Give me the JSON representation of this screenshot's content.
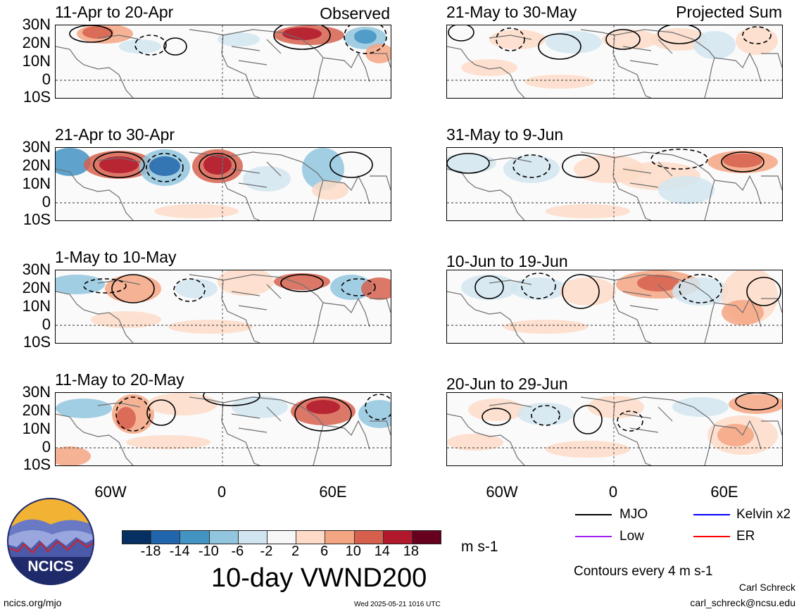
{
  "column_labels": {
    "left": "Observed",
    "right": "Projected Sum"
  },
  "panels": {
    "left": [
      "11-Apr to 20-Apr",
      "21-Apr to 30-Apr",
      "1-May to 10-May",
      "11-May to 20-May"
    ],
    "right": [
      "21-May to 30-May",
      "31-May to 9-Jun",
      "10-Jun to 19-Jun",
      "20-Jun to 29-Jun"
    ]
  },
  "lat_labels": [
    "30N",
    "20N",
    "10N",
    "0",
    "10S"
  ],
  "lon_labels": [
    "60W",
    "0",
    "60E"
  ],
  "colorbar": {
    "colors": [
      "#053061",
      "#2166ac",
      "#4393c3",
      "#92c5de",
      "#d1e5f0",
      "#f7f7f7",
      "#fddbc7",
      "#f4a582",
      "#d6604d",
      "#b2182b",
      "#67001f"
    ],
    "ticks": [
      "-18",
      "-14",
      "-10",
      "-6",
      "-2",
      "2",
      "6",
      "10",
      "14",
      "18"
    ],
    "units": "m s-1"
  },
  "title": "10-day VWND200",
  "legend": {
    "items": [
      {
        "label": "MJO",
        "color": "#000000"
      },
      {
        "label": "Kelvin x2",
        "color": "#0000ff"
      },
      {
        "label": "Low",
        "color": "#a020f0"
      },
      {
        "label": "ER",
        "color": "#ff0000"
      }
    ],
    "contour_note": "Contours every 4 m s-1"
  },
  "logo_text": "NCICS",
  "footer": {
    "url": "ncics.org/mjo",
    "timestamp": "Wed 2025-05-21 1016 UTC",
    "author": "Carl Schreck",
    "email": "carl_schreck@ncsu.edu"
  }
}
